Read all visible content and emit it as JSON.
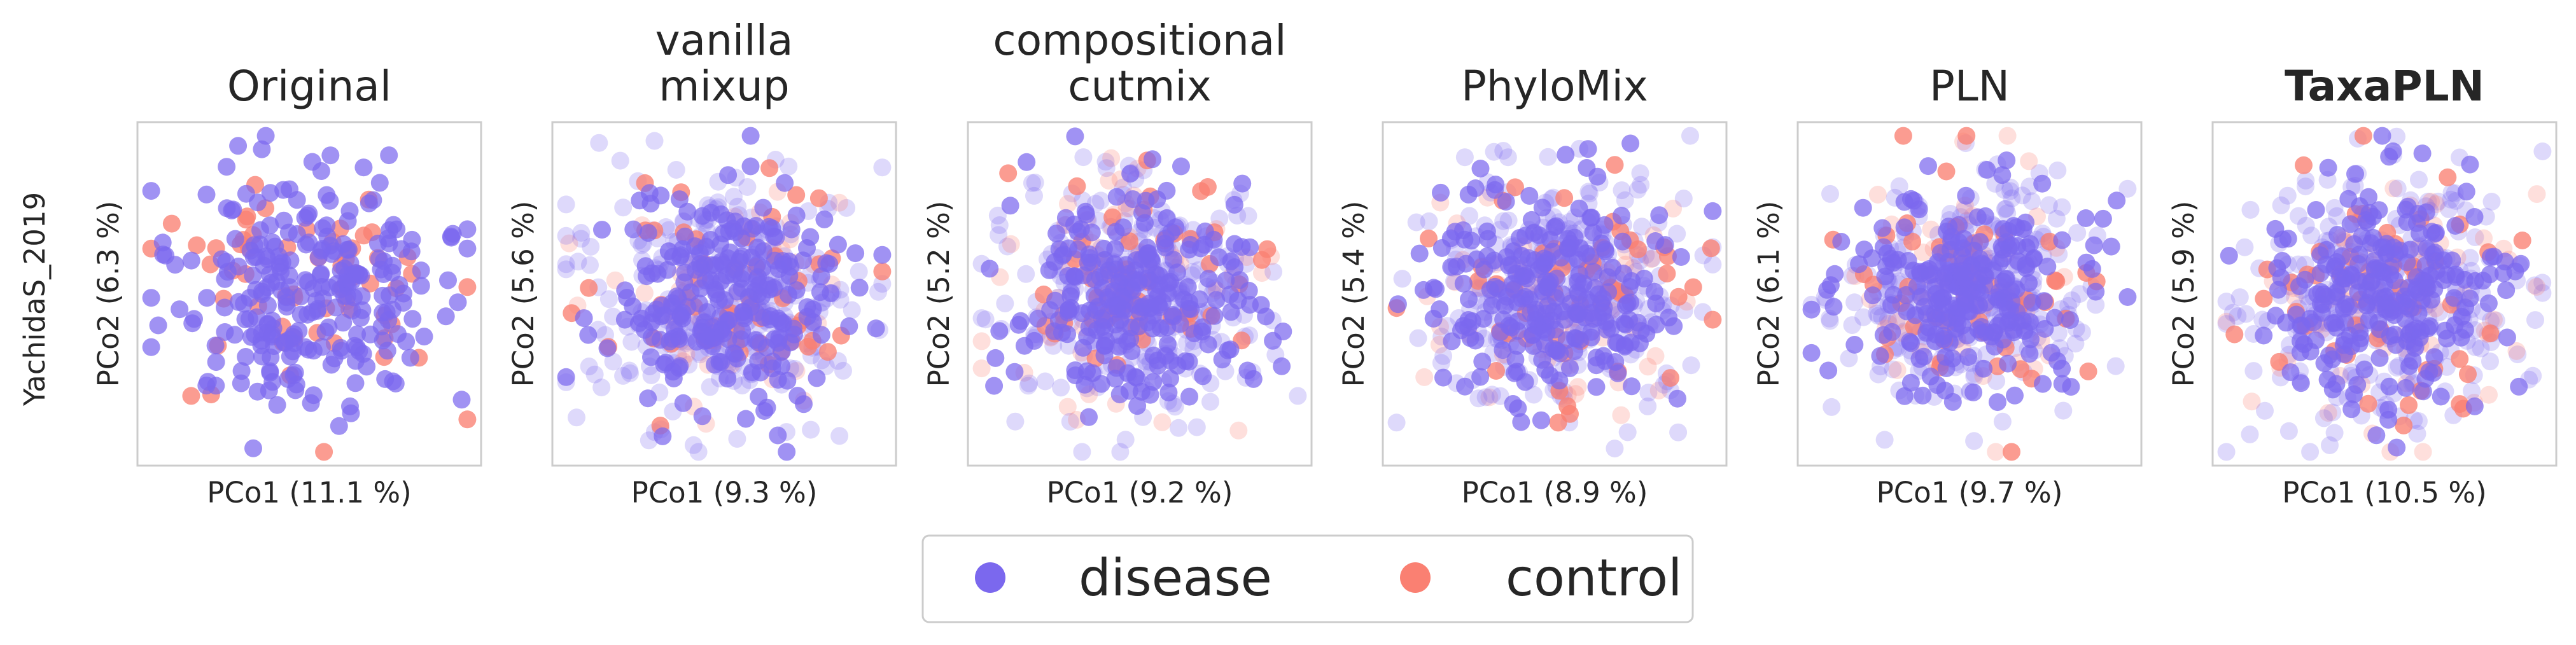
{
  "row_label": "YachidaS_2019",
  "colors": {
    "disease": "#7b68ee",
    "control": "#fa8072"
  },
  "legend": [
    {
      "label": "disease",
      "color": "#7b68ee"
    },
    {
      "label": "control",
      "color": "#fa8072"
    }
  ],
  "chart_data": [
    {
      "type": "scatter",
      "title": [
        "Original"
      ],
      "bold_title": false,
      "xlabel": "PCo1 (11.1 %)",
      "ylabel": "PCo2 (6.3 %)",
      "n_disease": 260,
      "n_control": 60,
      "synthetic": false,
      "seed": 11
    },
    {
      "type": "scatter",
      "title": [
        "vanilla",
        "mixup"
      ],
      "bold_title": false,
      "xlabel": "PCo1 (9.3 %)",
      "ylabel": "PCo2 (5.6 %)",
      "n_disease": 240,
      "n_control": 50,
      "synthetic": true,
      "n_synthetic": 320,
      "seed": 23
    },
    {
      "type": "scatter",
      "title": [
        "compositional",
        "cutmix"
      ],
      "bold_title": false,
      "xlabel": "PCo1 (9.2 %)",
      "ylabel": "PCo2 (5.2 %)",
      "n_disease": 240,
      "n_control": 50,
      "synthetic": true,
      "n_synthetic": 320,
      "seed": 37
    },
    {
      "type": "scatter",
      "title": [
        "PhyloMix"
      ],
      "bold_title": false,
      "xlabel": "PCo1 (8.9 %)",
      "ylabel": "PCo2 (5.4 %)",
      "n_disease": 240,
      "n_control": 50,
      "synthetic": true,
      "n_synthetic": 320,
      "seed": 41
    },
    {
      "type": "scatter",
      "title": [
        "PLN"
      ],
      "bold_title": false,
      "xlabel": "PCo1 (9.7 %)",
      "ylabel": "PCo2 (6.1 %)",
      "n_disease": 240,
      "n_control": 50,
      "synthetic": true,
      "n_synthetic": 320,
      "seed": 53
    },
    {
      "type": "scatter",
      "title": [
        "TaxaPLN"
      ],
      "bold_title": true,
      "xlabel": "PCo1 (10.5 %)",
      "ylabel": "PCo2 (5.9 %)",
      "n_disease": 240,
      "n_control": 50,
      "synthetic": true,
      "n_synthetic": 320,
      "seed": 67
    }
  ]
}
